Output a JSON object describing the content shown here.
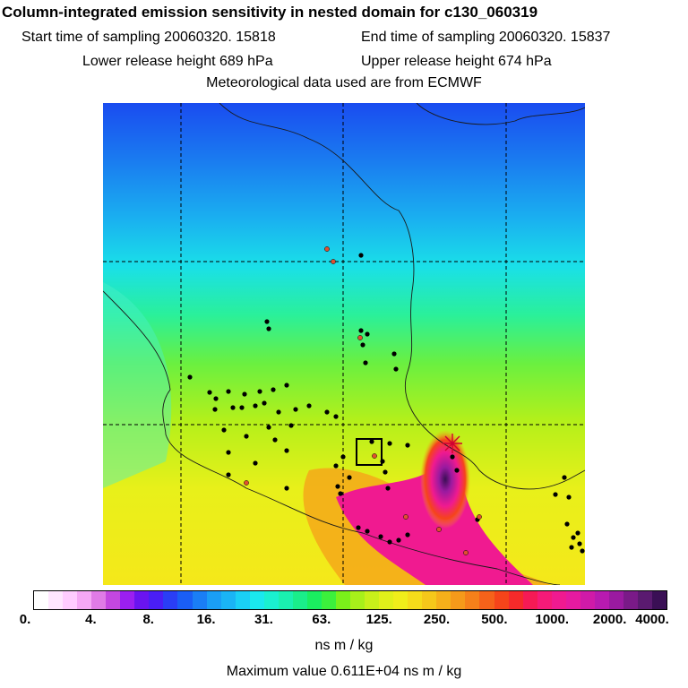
{
  "title": "Column-integrated emission sensitivity in nested domain for c130_060319",
  "start_time_label": "Start time of sampling 20060320. 15818",
  "end_time_label": "End time of sampling 20060320. 15837",
  "lower_release_label": "Lower release height  689 hPa",
  "upper_release_label": "Upper release height  674 hPa",
  "met_data_label": "Meteorological data used are from ECMWF",
  "colorbar": {
    "tick_labels": [
      "0.",
      "4.",
      "8.",
      "16.",
      "31.",
      "63.",
      "125.",
      "250.",
      "500.",
      "1000.",
      "2000.",
      "4000."
    ],
    "colors": [
      "#ffffff",
      "#ffe6ff",
      "#ffccff",
      "#f5a8f5",
      "#e07be6",
      "#c447e0",
      "#9b1ff0",
      "#6a14f0",
      "#4a1ef5",
      "#2a3ef5",
      "#1a5ef5",
      "#1a7ef5",
      "#1a9ef5",
      "#1ab4f5",
      "#1ad0f5",
      "#1ae8ee",
      "#1af0d0",
      "#1af0b0",
      "#1aee8a",
      "#1aee60",
      "#3cf03c",
      "#7af01a",
      "#a8f01a",
      "#c8f01a",
      "#e0f01a",
      "#f0ee1a",
      "#f5dc1a",
      "#f5c81a",
      "#f5b01a",
      "#f59a1a",
      "#f5801a",
      "#f5621a",
      "#f5441a",
      "#f52a2a",
      "#f51a55",
      "#f51a78",
      "#f01a90",
      "#e61aa0",
      "#d01aa8",
      "#b81ab0",
      "#9a1aa0",
      "#7a1a88",
      "#5a1a70",
      "#3a0f55"
    ]
  },
  "unit_label": "ns m / kg",
  "max_value_label": "Maximum value  0.611E+04 ns m / kg",
  "map": {
    "release_point_marker": "red-star",
    "station_marker_color": "#000000",
    "highlight_station_color": "#e05030"
  }
}
